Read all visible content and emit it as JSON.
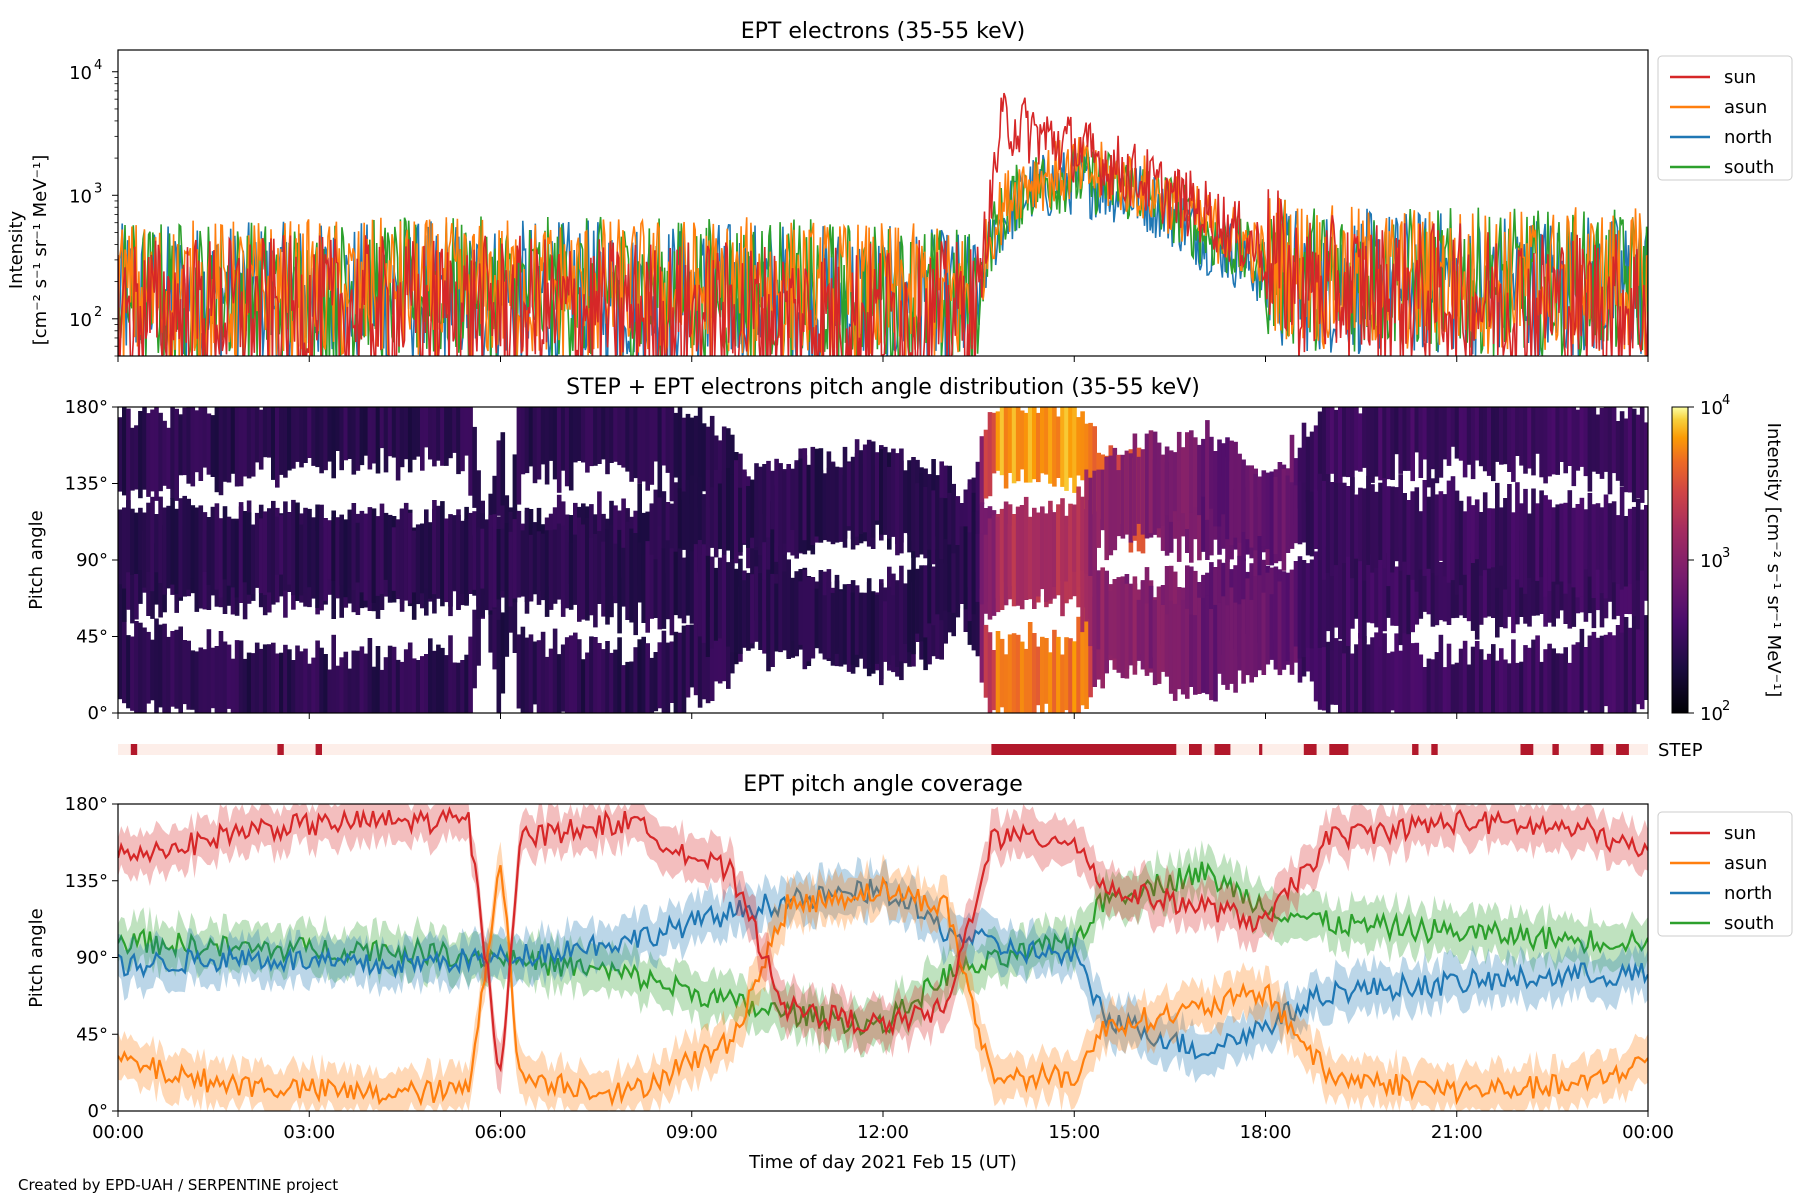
{
  "credit": "Created by EPD-UAH / SERPENTINE project",
  "chart_data": [
    {
      "type": "line",
      "title": "EPT electrons (35-55 keV)",
      "ylabel_line1": "Intensity",
      "ylabel_line2": "[cm⁻² s⁻¹ sr⁻¹ MeV⁻¹]",
      "yscale": "log",
      "ylim": [
        50,
        15000
      ],
      "xlim_hours": [
        0,
        24
      ],
      "yticks": [
        {
          "value": 100,
          "base": "10",
          "exp": "2"
        },
        {
          "value": 1000,
          "base": "10",
          "exp": "3"
        },
        {
          "value": 10000,
          "base": "10",
          "exp": "4"
        }
      ],
      "legend_position": "outside-right-top",
      "series": [
        {
          "name": "sun",
          "color": "#d62728",
          "profile": [
            [
              0,
              120
            ],
            [
              6,
              120
            ],
            [
              10,
              110
            ],
            [
              13.5,
              110
            ],
            [
              13.7,
              800
            ],
            [
              13.9,
              4000
            ],
            [
              14.5,
              3000
            ],
            [
              15.5,
              1800
            ],
            [
              16.5,
              1000
            ],
            [
              17.5,
              500
            ],
            [
              18.5,
              180
            ],
            [
              21,
              150
            ],
            [
              24,
              130
            ]
          ]
        },
        {
          "name": "asun",
          "color": "#ff7f0e",
          "profile": [
            [
              0,
              160
            ],
            [
              6,
              170
            ],
            [
              10,
              170
            ],
            [
              13.5,
              140
            ],
            [
              13.7,
              500
            ],
            [
              14.2,
              1300
            ],
            [
              15,
              1600
            ],
            [
              16,
              1200
            ],
            [
              17,
              600
            ],
            [
              18,
              300
            ],
            [
              19,
              210
            ],
            [
              24,
              200
            ]
          ]
        },
        {
          "name": "north",
          "color": "#1f77b4",
          "profile": [
            [
              0,
              150
            ],
            [
              6,
              160
            ],
            [
              10,
              160
            ],
            [
              13.5,
              130
            ],
            [
              13.7,
              400
            ],
            [
              14.3,
              1100
            ],
            [
              15,
              1300
            ],
            [
              16,
              1000
            ],
            [
              17,
              450
            ],
            [
              18,
              220
            ],
            [
              19,
              200
            ],
            [
              24,
              180
            ]
          ]
        },
        {
          "name": "south",
          "color": "#2ca02c",
          "profile": [
            [
              0,
              160
            ],
            [
              6,
              170
            ],
            [
              10,
              170
            ],
            [
              13.5,
              140
            ],
            [
              13.7,
              450
            ],
            [
              14.3,
              1200
            ],
            [
              15,
              1400
            ],
            [
              16,
              1100
            ],
            [
              17,
              500
            ],
            [
              18,
              250
            ],
            [
              19,
              210
            ],
            [
              24,
              190
            ]
          ]
        }
      ]
    },
    {
      "type": "heatmap",
      "title": "STEP + EPT electrons pitch angle distribution (35-55 keV)",
      "ylabel": "Pitch angle",
      "ylim": [
        0,
        180
      ],
      "yticks": [
        "0°",
        "45°",
        "90°",
        "135°",
        "180°"
      ],
      "colorbar": {
        "scale": "log",
        "range": [
          100,
          10000
        ],
        "label": "Intensity [cm⁻² s⁻¹ sr⁻¹ MeV⁻¹]",
        "ticks": [
          {
            "value": 100,
            "base": "10",
            "exp": "2"
          },
          {
            "value": 1000,
            "base": "10",
            "exp": "3"
          },
          {
            "value": 10000,
            "base": "10",
            "exp": "4"
          }
        ],
        "colormap": "inferno"
      },
      "step_label": "STEP",
      "step_coverage_hours": [
        [
          0.2,
          0.3
        ],
        [
          2.5,
          2.6
        ],
        [
          3.1,
          3.2
        ],
        [
          13.7,
          16.6
        ],
        [
          16.8,
          17.0
        ],
        [
          17.2,
          17.45
        ],
        [
          17.9,
          17.95
        ],
        [
          18.6,
          18.8
        ],
        [
          19.0,
          19.3
        ],
        [
          20.3,
          20.4
        ],
        [
          20.6,
          20.7
        ],
        [
          22.0,
          22.2
        ],
        [
          22.5,
          22.6
        ],
        [
          23.1,
          23.3
        ],
        [
          23.5,
          23.7
        ]
      ]
    },
    {
      "type": "line",
      "title": "EPT pitch angle coverage",
      "ylabel": "Pitch angle",
      "xlabel": "Time of day 2021 Feb 15 (UT)",
      "ylim": [
        0,
        180
      ],
      "xlim_hours": [
        0,
        24
      ],
      "yticks": [
        "0°",
        "45°",
        "90°",
        "135°",
        "180°"
      ],
      "xticks": [
        "00:00",
        "03:00",
        "06:00",
        "09:00",
        "12:00",
        "15:00",
        "18:00",
        "21:00",
        "00:00"
      ],
      "legend_position": "outside-right-top",
      "series": [
        {
          "name": "sun",
          "color": "#d62728",
          "profile": [
            [
              0,
              150
            ],
            [
              1,
              155
            ],
            [
              2,
              165
            ],
            [
              4,
              170
            ],
            [
              5.5,
              170
            ],
            [
              6,
              20
            ],
            [
              6.3,
              160
            ],
            [
              8,
              170
            ],
            [
              9,
              150
            ],
            [
              9.6,
              140
            ],
            [
              10.5,
              60
            ],
            [
              12,
              50
            ],
            [
              13,
              60
            ],
            [
              13.7,
              160
            ],
            [
              15,
              160
            ],
            [
              15.5,
              130
            ],
            [
              17,
              120
            ],
            [
              18,
              110
            ],
            [
              19,
              160
            ],
            [
              21,
              170
            ],
            [
              23,
              165
            ],
            [
              24,
              150
            ]
          ]
        },
        {
          "name": "asun",
          "color": "#ff7f0e",
          "profile": [
            [
              0,
              30
            ],
            [
              1,
              20
            ],
            [
              2,
              15
            ],
            [
              4,
              10
            ],
            [
              5.5,
              12
            ],
            [
              6,
              150
            ],
            [
              6.3,
              20
            ],
            [
              8,
              10
            ],
            [
              9,
              30
            ],
            [
              9.6,
              40
            ],
            [
              10.5,
              120
            ],
            [
              12,
              130
            ],
            [
              13,
              120
            ],
            [
              13.7,
              20
            ],
            [
              15,
              20
            ],
            [
              15.5,
              50
            ],
            [
              17,
              60
            ],
            [
              18,
              70
            ],
            [
              19,
              20
            ],
            [
              21,
              12
            ],
            [
              23,
              15
            ],
            [
              24,
              30
            ]
          ]
        },
        {
          "name": "north",
          "color": "#1f77b4",
          "profile": [
            [
              0,
              85
            ],
            [
              2,
              90
            ],
            [
              4,
              85
            ],
            [
              6,
              90
            ],
            [
              8,
              100
            ],
            [
              10,
              120
            ],
            [
              12,
              130
            ],
            [
              13,
              105
            ],
            [
              14,
              95
            ],
            [
              15,
              90
            ],
            [
              15.5,
              55
            ],
            [
              17,
              35
            ],
            [
              18,
              50
            ],
            [
              19,
              70
            ],
            [
              21,
              75
            ],
            [
              23,
              80
            ],
            [
              24,
              80
            ]
          ]
        },
        {
          "name": "south",
          "color": "#2ca02c",
          "profile": [
            [
              0,
              100
            ],
            [
              2,
              95
            ],
            [
              4,
              95
            ],
            [
              6,
              90
            ],
            [
              8,
              80
            ],
            [
              10,
              60
            ],
            [
              12,
              50
            ],
            [
              13,
              80
            ],
            [
              14,
              90
            ],
            [
              15,
              100
            ],
            [
              15.5,
              125
            ],
            [
              17,
              140
            ],
            [
              18,
              120
            ],
            [
              19,
              110
            ],
            [
              21,
              105
            ],
            [
              23,
              100
            ],
            [
              24,
              100
            ]
          ]
        }
      ]
    }
  ]
}
